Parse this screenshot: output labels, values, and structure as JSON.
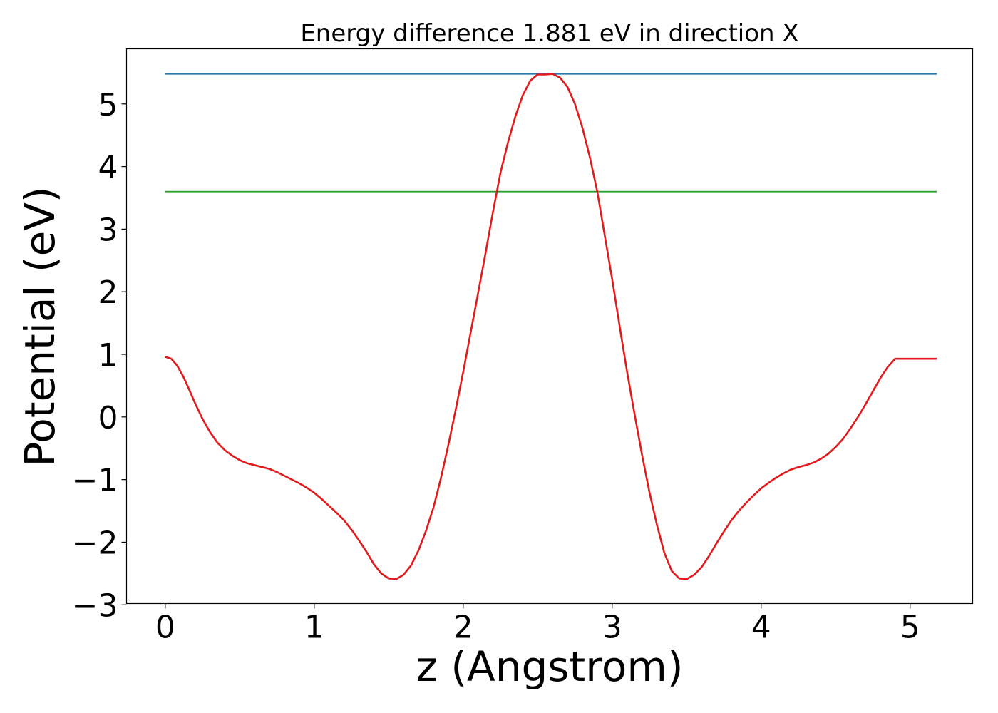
{
  "chart_data": {
    "type": "line",
    "title": "Energy difference 1.881 eV in direction X",
    "xlabel": "z (Angstrom)",
    "ylabel": "Potential (eV)",
    "xlim": [
      -0.26,
      5.42
    ],
    "ylim": [
      -2.98,
      5.88
    ],
    "grid": false,
    "xticks": [
      0,
      1,
      2,
      3,
      4,
      5
    ],
    "xtick_labels": [
      "0",
      "1",
      "2",
      "3",
      "4",
      "5"
    ],
    "yticks": [
      -3,
      -2,
      -1,
      0,
      1,
      2,
      3,
      4,
      5
    ],
    "ytick_labels": [
      "−3",
      "−2",
      "−1",
      "0",
      "1",
      "2",
      "3",
      "4",
      "5"
    ],
    "series": [
      {
        "color": "#1f77b4",
        "x": [
          0,
          5.18
        ],
        "y": [
          5.48,
          5.48
        ]
      },
      {
        "color": "#2ca02c",
        "x": [
          0,
          5.18
        ],
        "y": [
          3.6,
          3.6
        ]
      },
      {
        "color": "#e31a1c",
        "x": [
          0.0,
          0.04,
          0.08,
          0.12,
          0.16,
          0.2,
          0.25,
          0.3,
          0.35,
          0.4,
          0.45,
          0.5,
          0.55,
          0.6,
          0.65,
          0.7,
          0.75,
          0.8,
          0.85,
          0.9,
          0.95,
          1.0,
          1.05,
          1.1,
          1.15,
          1.2,
          1.25,
          1.3,
          1.35,
          1.4,
          1.45,
          1.5,
          1.55,
          1.6,
          1.65,
          1.7,
          1.75,
          1.8,
          1.85,
          1.9,
          1.95,
          2.0,
          2.05,
          2.1,
          2.15,
          2.2,
          2.25,
          2.3,
          2.35,
          2.4,
          2.45,
          2.5,
          2.55,
          2.6,
          2.65,
          2.7,
          2.75,
          2.8,
          2.85,
          2.9,
          2.95,
          3.0,
          3.05,
          3.1,
          3.15,
          3.2,
          3.25,
          3.3,
          3.35,
          3.4,
          3.45,
          3.5,
          3.55,
          3.6,
          3.65,
          3.7,
          3.75,
          3.8,
          3.85,
          3.9,
          3.95,
          4.0,
          4.05,
          4.1,
          4.15,
          4.2,
          4.25,
          4.3,
          4.35,
          4.4,
          4.45,
          4.5,
          4.55,
          4.6,
          4.65,
          4.7,
          4.75,
          4.8,
          4.85,
          4.9,
          4.95,
          5.0,
          5.05,
          5.1,
          5.14,
          5.18
        ],
        "y": [
          0.96,
          0.93,
          0.82,
          0.65,
          0.44,
          0.22,
          -0.03,
          -0.24,
          -0.41,
          -0.53,
          -0.62,
          -0.69,
          -0.74,
          -0.77,
          -0.8,
          -0.83,
          -0.88,
          -0.94,
          -1.0,
          -1.06,
          -1.13,
          -1.21,
          -1.31,
          -1.42,
          -1.53,
          -1.65,
          -1.8,
          -1.97,
          -2.15,
          -2.35,
          -2.5,
          -2.58,
          -2.59,
          -2.52,
          -2.37,
          -2.13,
          -1.82,
          -1.45,
          -0.98,
          -0.45,
          0.12,
          0.72,
          1.35,
          1.98,
          2.62,
          3.28,
          3.9,
          4.38,
          4.8,
          5.14,
          5.37,
          5.47,
          5.47,
          5.48,
          5.42,
          5.27,
          5.0,
          4.62,
          4.15,
          3.6,
          2.9,
          2.2,
          1.45,
          0.72,
          0.05,
          -0.6,
          -1.2,
          -1.72,
          -2.17,
          -2.46,
          -2.58,
          -2.59,
          -2.52,
          -2.4,
          -2.22,
          -2.02,
          -1.83,
          -1.65,
          -1.5,
          -1.37,
          -1.25,
          -1.14,
          -1.05,
          -0.97,
          -0.9,
          -0.84,
          -0.8,
          -0.77,
          -0.73,
          -0.67,
          -0.59,
          -0.48,
          -0.35,
          -0.18,
          0.0,
          0.2,
          0.41,
          0.62,
          0.8,
          0.93,
          0.93,
          0.93,
          0.93,
          0.93,
          0.93,
          0.93
        ]
      }
    ]
  }
}
